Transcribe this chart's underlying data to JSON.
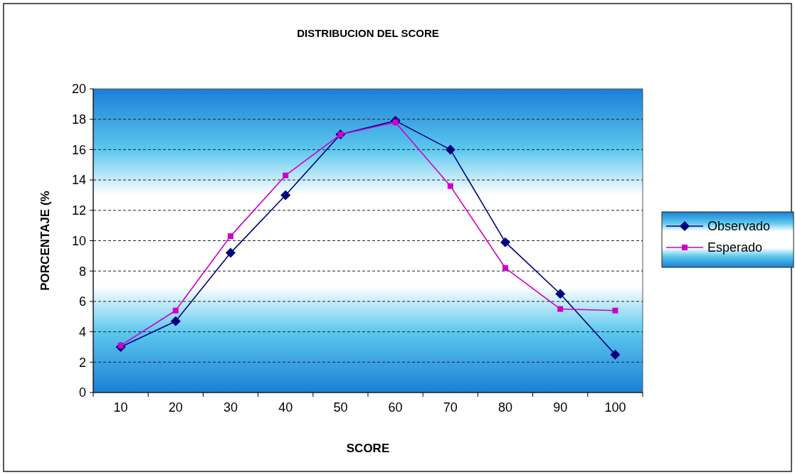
{
  "chart_data": {
    "type": "line",
    "title": "DISTRIBUCION DEL SCORE",
    "xlabel": "SCORE",
    "ylabel": "PORCENTAJE (%",
    "categories": [
      "10",
      "20",
      "30",
      "40",
      "50",
      "60",
      "70",
      "80",
      "90",
      "100"
    ],
    "series": [
      {
        "name": "Observado",
        "color": "#000080",
        "marker": "diamond",
        "values": [
          3.0,
          4.7,
          9.2,
          13.0,
          17.0,
          17.9,
          16.0,
          9.9,
          6.5,
          2.5
        ]
      },
      {
        "name": "Esperado",
        "color": "#cc00cc",
        "marker": "square",
        "values": [
          3.1,
          5.4,
          10.3,
          14.3,
          17.0,
          17.8,
          13.6,
          8.2,
          5.5,
          5.4
        ]
      }
    ],
    "ylim": [
      0,
      20
    ],
    "yticks": [
      0,
      2,
      4,
      6,
      8,
      10,
      12,
      14,
      16,
      18,
      20
    ],
    "grid": "y",
    "legend": "right",
    "line_style": "solid"
  }
}
